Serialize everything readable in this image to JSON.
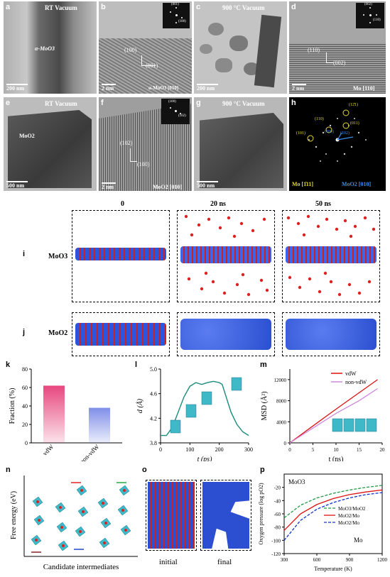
{
  "tem_panels": {
    "a": {
      "label": "a",
      "title": "RT Vacuum",
      "annotation": "α-MoO3",
      "scale": "200 nm"
    },
    "b": {
      "label": "b",
      "hkl1": "(100)",
      "hkl2": "(001)",
      "inset1": "(001)",
      "inset2": "(100)",
      "scale": "2 nm",
      "zone": "α-MoO3 [010]"
    },
    "c": {
      "label": "c",
      "title": "900 °C Vacuum",
      "scale": "200 nm"
    },
    "d": {
      "label": "d",
      "hkl1": "(110)",
      "hkl2": "(002)",
      "inset1": "(002)",
      "inset2": "(110)",
      "scale": "2 nm",
      "zone": "Mo [110]"
    },
    "e": {
      "label": "e",
      "title": "RT Vacuum",
      "annotation": "MoO2",
      "scale": "500 nm"
    },
    "f": {
      "label": "f",
      "hkl1": "(102)",
      "hkl2": "(100)",
      "inset1": "(100)",
      "inset2": "(102)",
      "scale": "2 nm",
      "zone": "MoO2 [010]"
    },
    "g": {
      "label": "g",
      "title": "900 °C Vacuum",
      "scale": "500 nm"
    },
    "h": {
      "label": "h",
      "spots": [
        "(110)",
        "(12̄1)",
        "(011)",
        "(101)",
        "(100)",
        "(102)"
      ],
      "zone_mo": "Mo [1̄11]",
      "zone_moo2": "MoO2 [010]"
    }
  },
  "md": {
    "times": [
      "0",
      "20 ns",
      "50 ns"
    ],
    "row_i": {
      "label": "i",
      "name": "MoO3"
    },
    "row_j": {
      "label": "j",
      "name": "MoO2"
    }
  },
  "panel_labels": {
    "k": "k",
    "l": "l",
    "m": "m",
    "n": "n",
    "o": "o",
    "p": "p"
  },
  "chart_data": [
    {
      "id": "k",
      "type": "bar",
      "categories": [
        "vdW",
        "non-vdW"
      ],
      "values": [
        62,
        38
      ],
      "ylabel": "Fraction (%)",
      "ylim": [
        0,
        80
      ],
      "yticks": [
        "0",
        "20",
        "40",
        "60",
        "80"
      ],
      "colors": [
        "#e8477e",
        "#7f8ee8"
      ]
    },
    {
      "id": "l",
      "type": "line",
      "xlabel": "t (ps)",
      "ylabel": "d (Å)",
      "xlim": [
        0,
        300
      ],
      "ylim": [
        3.8,
        5.0
      ],
      "xticks": [
        "0",
        "100",
        "200",
        "300"
      ],
      "yticks": [
        "3.8",
        "4.2",
        "4.6",
        "5.0"
      ],
      "x": [
        0,
        20,
        40,
        60,
        80,
        100,
        120,
        140,
        160,
        180,
        200,
        210,
        220,
        240,
        260,
        280,
        300
      ],
      "y": [
        3.92,
        3.92,
        4.05,
        4.3,
        4.55,
        4.72,
        4.78,
        4.75,
        4.78,
        4.8,
        4.78,
        4.75,
        4.6,
        4.3,
        4.1,
        3.98,
        3.92
      ],
      "color": "#1a8a7a"
    },
    {
      "id": "m",
      "type": "line",
      "xlabel": "t (ns)",
      "ylabel": "MSD (Å²)",
      "xlim": [
        0,
        20
      ],
      "ylim": [
        0,
        14000
      ],
      "xticks": [
        "0",
        "5",
        "10",
        "15",
        "20"
      ],
      "yticks": [
        "0",
        "4000",
        "8000",
        "12000"
      ],
      "series": [
        {
          "name": "vdW",
          "color": "#dd1111",
          "x": [
            0,
            5,
            10,
            15,
            19
          ],
          "y": [
            0,
            3200,
            6400,
            9500,
            12000
          ]
        },
        {
          "name": "non-vdW",
          "color": "#cc88dd",
          "x": [
            0,
            5,
            10,
            15,
            19
          ],
          "y": [
            0,
            2800,
            5600,
            8000,
            10300
          ]
        }
      ]
    },
    {
      "id": "n",
      "type": "scatter",
      "xlabel": "Candidate intermediates",
      "ylabel": "Free energy (eV)"
    },
    {
      "id": "p",
      "type": "line",
      "xlabel": "Temperature (K)",
      "ylabel": "Oxygen pressure (log pO2)",
      "xlim": [
        300,
        1200
      ],
      "ylim": [
        -120,
        0
      ],
      "xticks": [
        "300",
        "600",
        "900",
        "1200"
      ],
      "yticks": [
        "-20",
        "-40",
        "-60",
        "-80",
        "-100",
        "-120"
      ],
      "region_labels": [
        "MoO3",
        "Mo"
      ],
      "series": [
        {
          "name": "MoO3/MoO2",
          "color": "#229944",
          "dash": "4,2",
          "x": [
            300,
            450,
            600,
            750,
            900,
            1050,
            1200
          ],
          "y": [
            -66,
            -47,
            -36,
            -29,
            -24,
            -20,
            -17
          ]
        },
        {
          "name": "MoO2/Mo",
          "color": "#dd1111",
          "dash": "",
          "x": [
            300,
            450,
            600,
            750,
            900,
            1050,
            1200
          ],
          "y": [
            -85,
            -60,
            -46,
            -37,
            -31,
            -27,
            -24
          ]
        },
        {
          "name": "MoO2/Mo",
          "color": "#1133cc",
          "dash": "4,2",
          "x": [
            300,
            450,
            600,
            750,
            900,
            1050,
            1200
          ],
          "y": [
            -100,
            -70,
            -53,
            -43,
            -36,
            -31,
            -28
          ]
        }
      ]
    }
  ],
  "panel_o": {
    "initial": "initial",
    "final": "final"
  }
}
